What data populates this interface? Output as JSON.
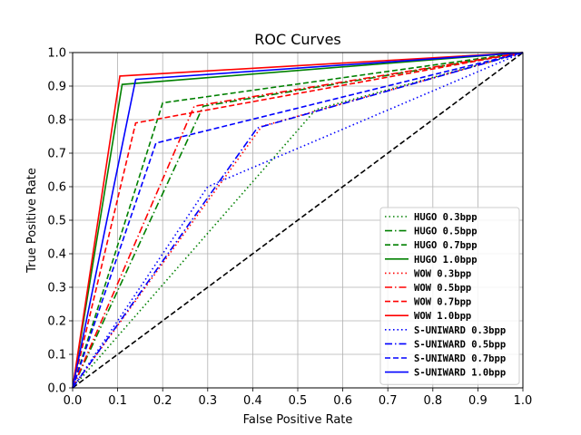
{
  "chart_data": {
    "type": "line",
    "title": "ROC Curves",
    "xlabel": "False Positive Rate",
    "ylabel": "True Positive Rate",
    "xlim": [
      0,
      1
    ],
    "ylim": [
      0,
      1
    ],
    "xticks": [
      "0.0",
      "0.1",
      "0.2",
      "0.3",
      "0.4",
      "0.5",
      "0.6",
      "0.7",
      "0.8",
      "0.9",
      "1.0"
    ],
    "yticks": [
      "0.0",
      "0.1",
      "0.2",
      "0.3",
      "0.4",
      "0.5",
      "0.6",
      "0.7",
      "0.8",
      "0.9",
      "1.0"
    ],
    "grid": true,
    "legend_position": "lower-right",
    "reference_line": {
      "x": [
        0,
        1
      ],
      "y": [
        0,
        1
      ],
      "color": "#000000",
      "style": "dashed"
    },
    "series": [
      {
        "name": "HUGO 0.3bpp",
        "color": "#008000",
        "style": "dotted",
        "x": [
          0,
          0.54,
          1
        ],
        "y": [
          0,
          0.83,
          1
        ]
      },
      {
        "name": "HUGO 0.5bpp",
        "color": "#008000",
        "style": "dashdot",
        "x": [
          0,
          0.29,
          1
        ],
        "y": [
          0,
          0.84,
          1
        ]
      },
      {
        "name": "HUGO 0.7bpp",
        "color": "#008000",
        "style": "dashed",
        "x": [
          0,
          0.2,
          1
        ],
        "y": [
          0,
          0.85,
          1
        ]
      },
      {
        "name": "HUGO 1.0bpp",
        "color": "#008000",
        "style": "solid",
        "x": [
          0,
          0.11,
          1
        ],
        "y": [
          0,
          0.905,
          1
        ]
      },
      {
        "name": "WOW 0.3bpp",
        "color": "#ff0000",
        "style": "dotted",
        "x": [
          0,
          0.42,
          1
        ],
        "y": [
          0,
          0.78,
          1
        ]
      },
      {
        "name": "WOW 0.5bpp",
        "color": "#ff0000",
        "style": "dashdot",
        "x": [
          0,
          0.27,
          1
        ],
        "y": [
          0,
          0.84,
          1
        ]
      },
      {
        "name": "WOW 0.7bpp",
        "color": "#ff0000",
        "style": "dashed",
        "x": [
          0,
          0.14,
          1
        ],
        "y": [
          0,
          0.79,
          1
        ]
      },
      {
        "name": "WOW 1.0bpp",
        "color": "#ff0000",
        "style": "solid",
        "x": [
          0,
          0.105,
          1
        ],
        "y": [
          0,
          0.93,
          1
        ]
      },
      {
        "name": "S-UNIWARD 0.3bpp",
        "color": "#0000ff",
        "style": "dotted",
        "x": [
          0,
          0.3,
          1
        ],
        "y": [
          0,
          0.6,
          1
        ]
      },
      {
        "name": "S-UNIWARD 0.5bpp",
        "color": "#0000ff",
        "style": "dashdot",
        "x": [
          0,
          0.41,
          1
        ],
        "y": [
          0,
          0.775,
          1
        ]
      },
      {
        "name": "S-UNIWARD 0.7bpp",
        "color": "#0000ff",
        "style": "dashed",
        "x": [
          0,
          0.185,
          1
        ],
        "y": [
          0,
          0.73,
          1
        ]
      },
      {
        "name": "S-UNIWARD 1.0bpp",
        "color": "#0000ff",
        "style": "solid",
        "x": [
          0,
          0.14,
          1
        ],
        "y": [
          0,
          0.92,
          1
        ]
      }
    ]
  }
}
